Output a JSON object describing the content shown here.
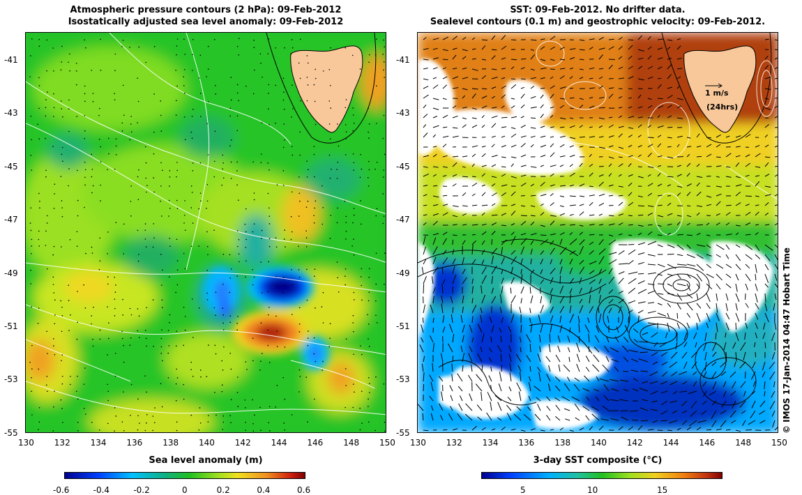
{
  "left_panel": {
    "title_line1": "Atmospheric pressure contours (2 hPa): 09-Feb-2012",
    "title_line2": "Isostatically adjusted sea level anomaly: 09-Feb-2012",
    "x_ticks": [
      "130",
      "132",
      "134",
      "136",
      "138",
      "140",
      "142",
      "144",
      "146",
      "148",
      "150"
    ],
    "y_ticks": [
      "-41",
      "-43",
      "-45",
      "-47",
      "-49",
      "-51",
      "-53",
      "-55"
    ],
    "colorbar_label": "Sea level anomaly (m)",
    "colorbar_ticks": [
      "-0.6",
      "-0.4",
      "-0.2",
      "0",
      "0.2",
      "0.4",
      "0.6"
    ]
  },
  "right_panel": {
    "title_line1": "SST: 09-Feb-2012. No drifter data.",
    "title_line2": "Sealevel contours (0.1 m) and geostrophic velocity: 09-Feb-2012.",
    "x_ticks": [
      "130",
      "132",
      "134",
      "136",
      "138",
      "140",
      "142",
      "144",
      "146",
      "148",
      "150"
    ],
    "y_ticks": [
      "-41",
      "-43",
      "-45",
      "-47",
      "-49",
      "-51",
      "-53",
      "-55"
    ],
    "colorbar_label": "3-day SST composite (°C)",
    "colorbar_ticks": [
      "5",
      "10",
      "15"
    ],
    "scale_arrow_label": "1 m/s",
    "scale_arrow_sublabel": "(24hrs)"
  },
  "credit": "© IMOS 17-Jan-2014 04:47 Hobart Time",
  "colors": {
    "land": "#f8c89a",
    "sla_scale": [
      "#00008f",
      "#0050ff",
      "#00c0ff",
      "#10b080",
      "#20c020",
      "#90e020",
      "#f0e020",
      "#f09020",
      "#d02010",
      "#800000"
    ],
    "sst_scale": [
      "#00008f",
      "#0050ff",
      "#00b0ff",
      "#20c0a0",
      "#20c020",
      "#a0e020",
      "#f0d020",
      "#f08010",
      "#c03010",
      "#800000"
    ]
  }
}
